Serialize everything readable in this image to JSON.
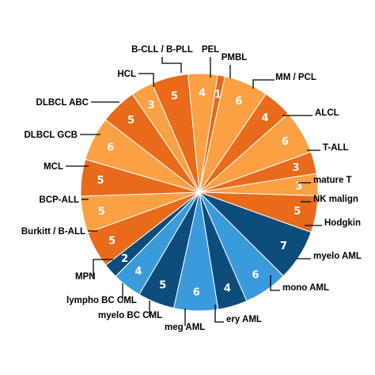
{
  "chart_data": {
    "type": "pie",
    "title": "",
    "start_category": "PEL",
    "direction": "clockwise",
    "categories": [
      "PEL",
      "PMBL",
      "MM / PCL",
      "ALCL",
      "T-ALL",
      "mature T",
      "NK malign",
      "Hodgkin",
      "myelo AML",
      "mono AML",
      "ery AML",
      "meg AML",
      "myelo BC CML",
      "lympho BC CML",
      "MPN",
      "Burkitt / B-ALL",
      "BCP-ALL",
      "MCL",
      "DLBCL GCB",
      "DLBCL ABC",
      "HCL",
      "B-CLL / B-PLL"
    ],
    "values": [
      4,
      1,
      6,
      4,
      6,
      3,
      3,
      5,
      7,
      6,
      4,
      6,
      5,
      4,
      2,
      5,
      5,
      5,
      6,
      5,
      3,
      5
    ],
    "colors": [
      "#FCA044",
      "#E86A1A",
      "#FCA044",
      "#E86A1A",
      "#FCA044",
      "#E86A1A",
      "#FCA044",
      "#E86A1A",
      "#0D4C7B",
      "#3A9BDC",
      "#0D4C7B",
      "#3A9BDC",
      "#0D4C7B",
      "#3A9BDC",
      "#0D4C7B",
      "#E86A1A",
      "#FCA044",
      "#E86A1A",
      "#FCA044",
      "#E86A1A",
      "#FCA044",
      "#E86A1A"
    ],
    "legend": "none",
    "data_labels": "inside"
  }
}
